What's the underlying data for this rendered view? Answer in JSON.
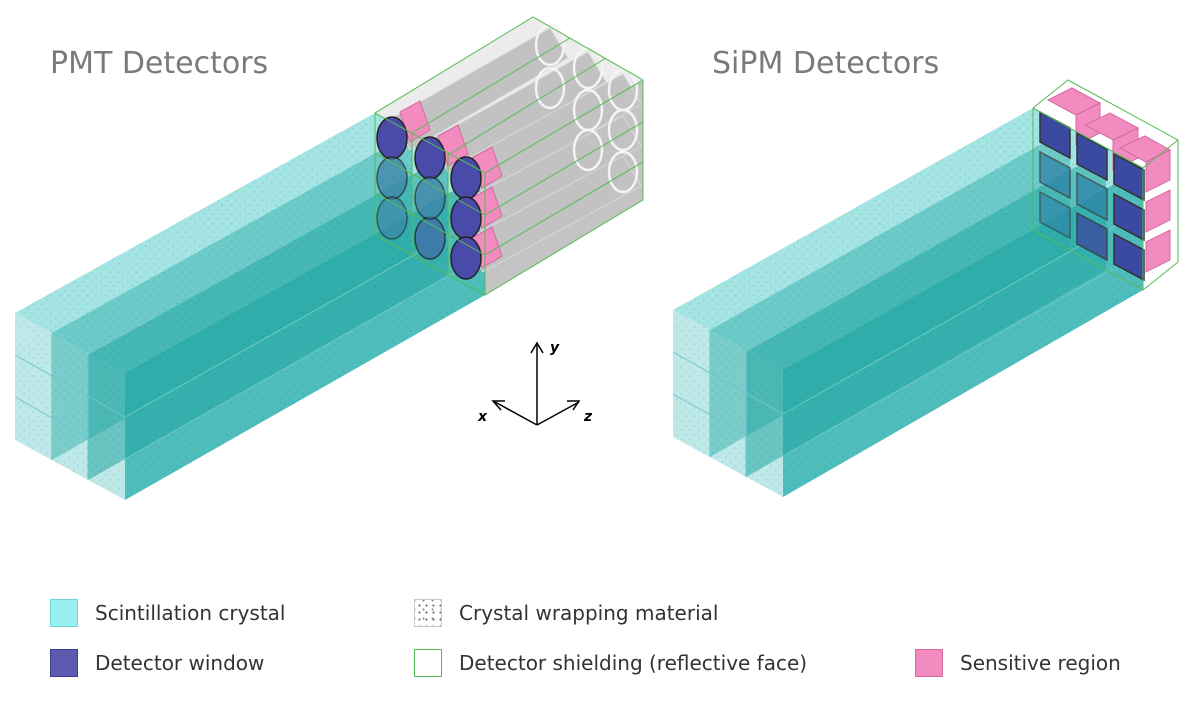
{
  "titles": {
    "pmt": "PMT Detectors",
    "sipm": "SiPM Detectors"
  },
  "axes": {
    "x": "x",
    "y": "y",
    "z": "z"
  },
  "legend": [
    {
      "label": "Scintillation crystal",
      "swatch": "crystal"
    },
    {
      "label": "Crystal wrapping material",
      "swatch": "wrap"
    },
    {
      "label": "Detector window",
      "swatch": "window"
    },
    {
      "label": "Detector shielding (reflective face)",
      "swatch": "shield"
    },
    {
      "label": "Sensitive region",
      "swatch": "sens"
    }
  ],
  "colors": {
    "crystal": "#99f0ee",
    "crystal_dark": "#1aa7a5",
    "detector_window": "#5a5ab0",
    "shielding": "#55bb55",
    "sensitive": "#f28bbf",
    "pmt_tube": "#b5b5b5",
    "title": "#7a7a7a"
  }
}
